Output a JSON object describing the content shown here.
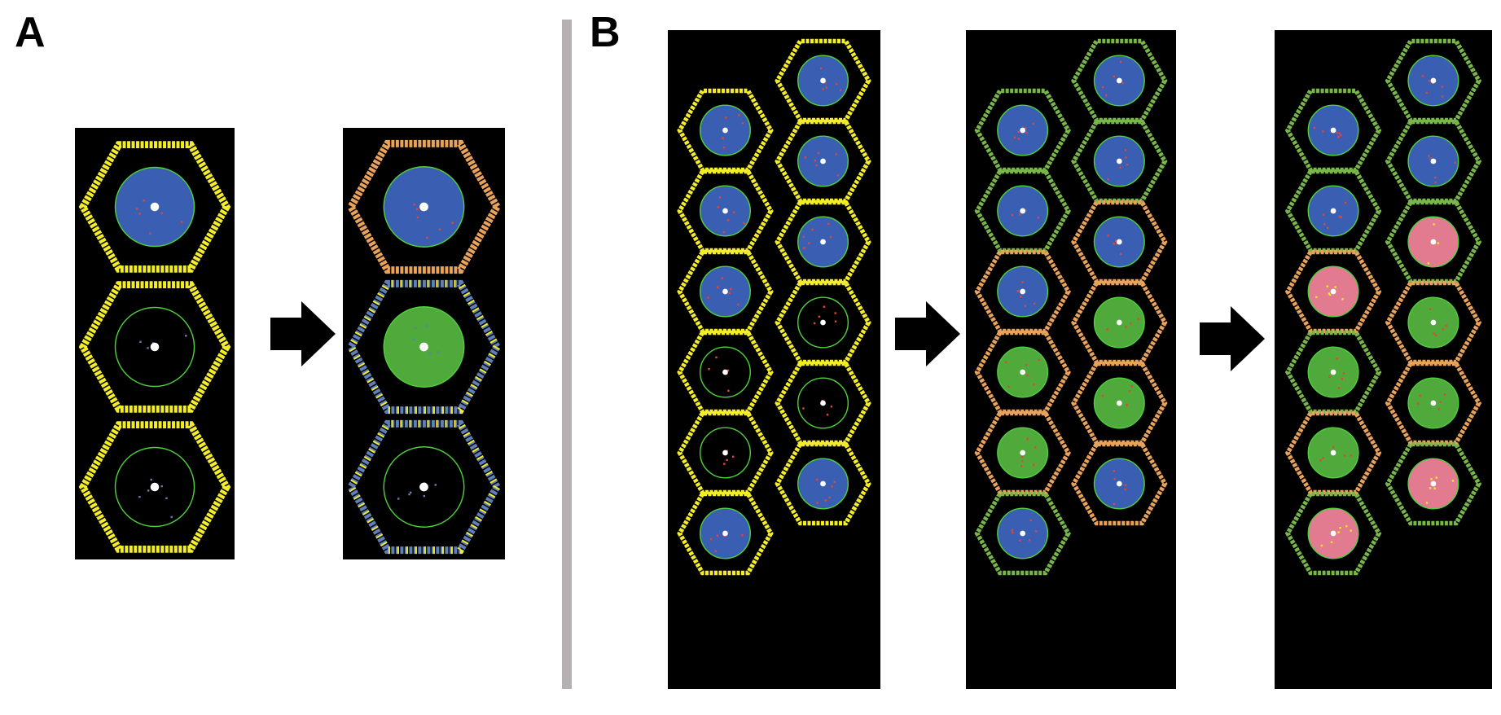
{
  "panels": {
    "a": {
      "label": "A"
    },
    "b": {
      "label": "B"
    }
  },
  "colors": {
    "background": "#ffffff",
    "frame": "#000000",
    "divider": "#b5b0b1",
    "border_yellow": "#f2ec2a",
    "border_orange": "#e8a25a",
    "border_green": "#79b64a",
    "border_blue": "#5f7fb8",
    "ring": "#4fd23b",
    "fill_blue": "#3a5fb2",
    "fill_green": "#4fa93b",
    "fill_pink": "#e27a90",
    "center_dot": "#ffffff",
    "particle_red": "#e0463c",
    "particle_yellow": "#f2ec2a",
    "arrow": "#000000"
  },
  "icons": {
    "transition": "right-arrow-icon"
  },
  "panel_a": {
    "before": [
      {
        "border": "yellow",
        "fill": "blue",
        "particles": "red"
      },
      {
        "border": "yellow",
        "fill": "none",
        "particles": "blue"
      },
      {
        "border": "yellow",
        "fill": "none",
        "particles": "blue"
      }
    ],
    "after": [
      {
        "border": "orange",
        "fill": "blue",
        "particles": "red"
      },
      {
        "border": "blue-yellow",
        "fill": "green",
        "particles": "blue"
      },
      {
        "border": "blue-yellow",
        "fill": "none",
        "particles": "blue"
      }
    ]
  },
  "panel_b": {
    "stage1": {
      "left_column": [
        {
          "border": "yellow",
          "fill": "blue"
        },
        {
          "border": "yellow",
          "fill": "blue"
        },
        {
          "border": "yellow",
          "fill": "blue"
        },
        {
          "border": "yellow",
          "fill": "none"
        },
        {
          "border": "yellow",
          "fill": "none"
        },
        {
          "border": "yellow",
          "fill": "blue"
        }
      ],
      "right_column": [
        {
          "border": "yellow",
          "fill": "blue"
        },
        {
          "border": "yellow",
          "fill": "blue"
        },
        {
          "border": "yellow",
          "fill": "blue"
        },
        {
          "border": "yellow",
          "fill": "none"
        },
        {
          "border": "yellow",
          "fill": "none"
        },
        {
          "border": "yellow",
          "fill": "blue"
        }
      ]
    },
    "stage2": {
      "left_column": [
        {
          "border": "green",
          "fill": "blue"
        },
        {
          "border": "green",
          "fill": "blue"
        },
        {
          "border": "orange",
          "fill": "blue"
        },
        {
          "border": "orange",
          "fill": "green"
        },
        {
          "border": "orange",
          "fill": "green"
        },
        {
          "border": "green",
          "fill": "blue"
        }
      ],
      "right_column": [
        {
          "border": "green",
          "fill": "blue"
        },
        {
          "border": "green",
          "fill": "blue"
        },
        {
          "border": "orange",
          "fill": "blue"
        },
        {
          "border": "orange",
          "fill": "green"
        },
        {
          "border": "orange",
          "fill": "green"
        },
        {
          "border": "orange",
          "fill": "blue"
        }
      ]
    },
    "stage3": {
      "left_column": [
        {
          "border": "green",
          "fill": "blue"
        },
        {
          "border": "green",
          "fill": "blue"
        },
        {
          "border": "orange",
          "fill": "pink"
        },
        {
          "border": "green",
          "fill": "green"
        },
        {
          "border": "orange",
          "fill": "green"
        },
        {
          "border": "green",
          "fill": "pink"
        }
      ],
      "right_column": [
        {
          "border": "green",
          "fill": "blue"
        },
        {
          "border": "green",
          "fill": "blue"
        },
        {
          "border": "green",
          "fill": "pink"
        },
        {
          "border": "orange",
          "fill": "green"
        },
        {
          "border": "orange",
          "fill": "green"
        },
        {
          "border": "green",
          "fill": "pink"
        }
      ]
    }
  }
}
